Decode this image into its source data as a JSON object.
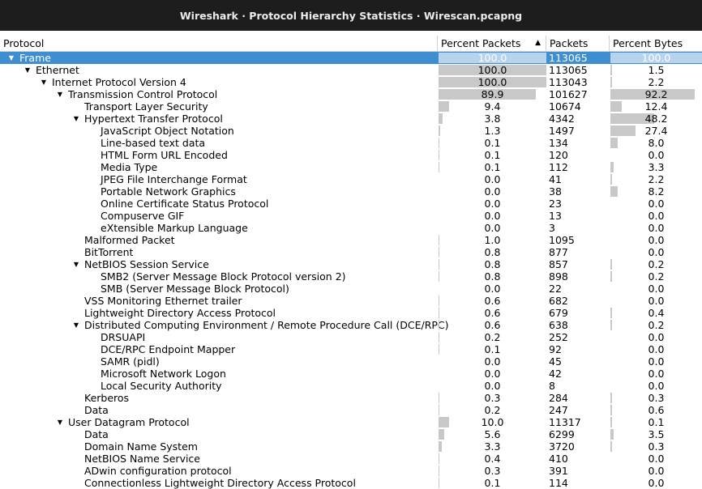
{
  "window": {
    "title": "Wireshark · Protocol Hierarchy Statistics · Wirescan.pcapng"
  },
  "columns": {
    "protocol": "Protocol",
    "percent_packets": "Percent Packets",
    "packets": "Packets",
    "percent_bytes": "Percent Bytes"
  },
  "rows": [
    {
      "name": "Frame",
      "depth": 0,
      "expander": "open",
      "pp": "100.0",
      "pk": "113065",
      "pb": "100.0",
      "ppf": 100,
      "pbf": 100,
      "selected": true
    },
    {
      "name": "Ethernet",
      "depth": 1,
      "expander": "open",
      "pp": "100.0",
      "pk": "113065",
      "pb": "1.5",
      "ppf": 100,
      "pbf": 1.5
    },
    {
      "name": "Internet Protocol Version 4",
      "depth": 2,
      "expander": "open",
      "pp": "100.0",
      "pk": "113043",
      "pb": "2.2",
      "ppf": 100,
      "pbf": 2.2
    },
    {
      "name": "Transmission Control Protocol",
      "depth": 3,
      "expander": "open",
      "pp": "89.9",
      "pk": "101627",
      "pb": "92.2",
      "ppf": 89.9,
      "pbf": 92.2
    },
    {
      "name": "Transport Layer Security",
      "depth": 4,
      "expander": "",
      "pp": "9.4",
      "pk": "10674",
      "pb": "12.4",
      "ppf": 9.4,
      "pbf": 12.4
    },
    {
      "name": "Hypertext Transfer Protocol",
      "depth": 4,
      "expander": "open",
      "pp": "3.8",
      "pk": "4342",
      "pb": "48.2",
      "ppf": 3.8,
      "pbf": 48.2
    },
    {
      "name": "JavaScript Object Notation",
      "depth": 5,
      "expander": "",
      "pp": "1.3",
      "pk": "1497",
      "pb": "27.4",
      "ppf": 1.3,
      "pbf": 27.4
    },
    {
      "name": "Line-based text data",
      "depth": 5,
      "expander": "",
      "pp": "0.1",
      "pk": "134",
      "pb": "8.0",
      "ppf": 0.1,
      "pbf": 8.0
    },
    {
      "name": "HTML Form URL Encoded",
      "depth": 5,
      "expander": "",
      "pp": "0.1",
      "pk": "120",
      "pb": "0.0",
      "ppf": 0.1,
      "pbf": 0
    },
    {
      "name": "Media Type",
      "depth": 5,
      "expander": "",
      "pp": "0.1",
      "pk": "112",
      "pb": "3.3",
      "ppf": 0.1,
      "pbf": 3.3
    },
    {
      "name": "JPEG File Interchange Format",
      "depth": 5,
      "expander": "",
      "pp": "0.0",
      "pk": "41",
      "pb": "2.2",
      "ppf": 0,
      "pbf": 2.2
    },
    {
      "name": "Portable Network Graphics",
      "depth": 5,
      "expander": "",
      "pp": "0.0",
      "pk": "38",
      "pb": "8.2",
      "ppf": 0,
      "pbf": 8.2
    },
    {
      "name": "Online Certificate Status Protocol",
      "depth": 5,
      "expander": "",
      "pp": "0.0",
      "pk": "23",
      "pb": "0.0",
      "ppf": 0,
      "pbf": 0
    },
    {
      "name": "Compuserve GIF",
      "depth": 5,
      "expander": "",
      "pp": "0.0",
      "pk": "13",
      "pb": "0.0",
      "ppf": 0,
      "pbf": 0
    },
    {
      "name": "eXtensible Markup Language",
      "depth": 5,
      "expander": "",
      "pp": "0.0",
      "pk": "3",
      "pb": "0.0",
      "ppf": 0,
      "pbf": 0
    },
    {
      "name": "Malformed Packet",
      "depth": 4,
      "expander": "",
      "pp": "1.0",
      "pk": "1095",
      "pb": "0.0",
      "ppf": 1.0,
      "pbf": 0
    },
    {
      "name": "BitTorrent",
      "depth": 4,
      "expander": "",
      "pp": "0.8",
      "pk": "877",
      "pb": "0.0",
      "ppf": 0.8,
      "pbf": 0
    },
    {
      "name": "NetBIOS Session Service",
      "depth": 4,
      "expander": "open",
      "pp": "0.8",
      "pk": "857",
      "pb": "0.2",
      "ppf": 0.8,
      "pbf": 0.2
    },
    {
      "name": "SMB2 (Server Message Block Protocol version 2)",
      "depth": 5,
      "expander": "",
      "pp": "0.8",
      "pk": "898",
      "pb": "0.2",
      "ppf": 0.8,
      "pbf": 0.2
    },
    {
      "name": "SMB (Server Message Block Protocol)",
      "depth": 5,
      "expander": "",
      "pp": "0.0",
      "pk": "22",
      "pb": "0.0",
      "ppf": 0,
      "pbf": 0
    },
    {
      "name": "VSS Monitoring Ethernet trailer",
      "depth": 4,
      "expander": "",
      "pp": "0.6",
      "pk": "682",
      "pb": "0.0",
      "ppf": 0.6,
      "pbf": 0
    },
    {
      "name": "Lightweight Directory Access Protocol",
      "depth": 4,
      "expander": "",
      "pp": "0.6",
      "pk": "679",
      "pb": "0.4",
      "ppf": 0.6,
      "pbf": 0.4
    },
    {
      "name": "Distributed Computing Environment / Remote Procedure Call (DCE/RPC)",
      "depth": 4,
      "expander": "open",
      "pp": "0.6",
      "pk": "638",
      "pb": "0.2",
      "ppf": 0.6,
      "pbf": 0.2
    },
    {
      "name": "DRSUAPI",
      "depth": 5,
      "expander": "",
      "pp": "0.2",
      "pk": "252",
      "pb": "0.0",
      "ppf": 0.2,
      "pbf": 0
    },
    {
      "name": "DCE/RPC Endpoint Mapper",
      "depth": 5,
      "expander": "",
      "pp": "0.1",
      "pk": "92",
      "pb": "0.0",
      "ppf": 0.1,
      "pbf": 0
    },
    {
      "name": "SAMR (pidl)",
      "depth": 5,
      "expander": "",
      "pp": "0.0",
      "pk": "45",
      "pb": "0.0",
      "ppf": 0,
      "pbf": 0
    },
    {
      "name": "Microsoft Network Logon",
      "depth": 5,
      "expander": "",
      "pp": "0.0",
      "pk": "42",
      "pb": "0.0",
      "ppf": 0,
      "pbf": 0
    },
    {
      "name": "Local Security Authority",
      "depth": 5,
      "expander": "",
      "pp": "0.0",
      "pk": "8",
      "pb": "0.0",
      "ppf": 0,
      "pbf": 0
    },
    {
      "name": "Kerberos",
      "depth": 4,
      "expander": "",
      "pp": "0.3",
      "pk": "284",
      "pb": "0.3",
      "ppf": 0.3,
      "pbf": 0.3
    },
    {
      "name": "Data",
      "depth": 4,
      "expander": "",
      "pp": "0.2",
      "pk": "247",
      "pb": "0.6",
      "ppf": 0.2,
      "pbf": 0.6
    },
    {
      "name": "User Datagram Protocol",
      "depth": 3,
      "expander": "open",
      "pp": "10.0",
      "pk": "11317",
      "pb": "0.1",
      "ppf": 10.0,
      "pbf": 0.1
    },
    {
      "name": "Data",
      "depth": 4,
      "expander": "",
      "pp": "5.6",
      "pk": "6299",
      "pb": "3.5",
      "ppf": 5.6,
      "pbf": 3.5
    },
    {
      "name": "Domain Name System",
      "depth": 4,
      "expander": "",
      "pp": "3.3",
      "pk": "3720",
      "pb": "0.3",
      "ppf": 3.3,
      "pbf": 0.3
    },
    {
      "name": "NetBIOS Name Service",
      "depth": 4,
      "expander": "",
      "pp": "0.4",
      "pk": "410",
      "pb": "0.0",
      "ppf": 0.4,
      "pbf": 0
    },
    {
      "name": "ADwin configuration protocol",
      "depth": 4,
      "expander": "",
      "pp": "0.3",
      "pk": "391",
      "pb": "0.0",
      "ppf": 0.3,
      "pbf": 0
    },
    {
      "name": "Connectionless Lightweight Directory Access Protocol",
      "depth": 4,
      "expander": "",
      "pp": "0.1",
      "pk": "114",
      "pb": "0.0",
      "ppf": 0.1,
      "pbf": 0
    }
  ]
}
